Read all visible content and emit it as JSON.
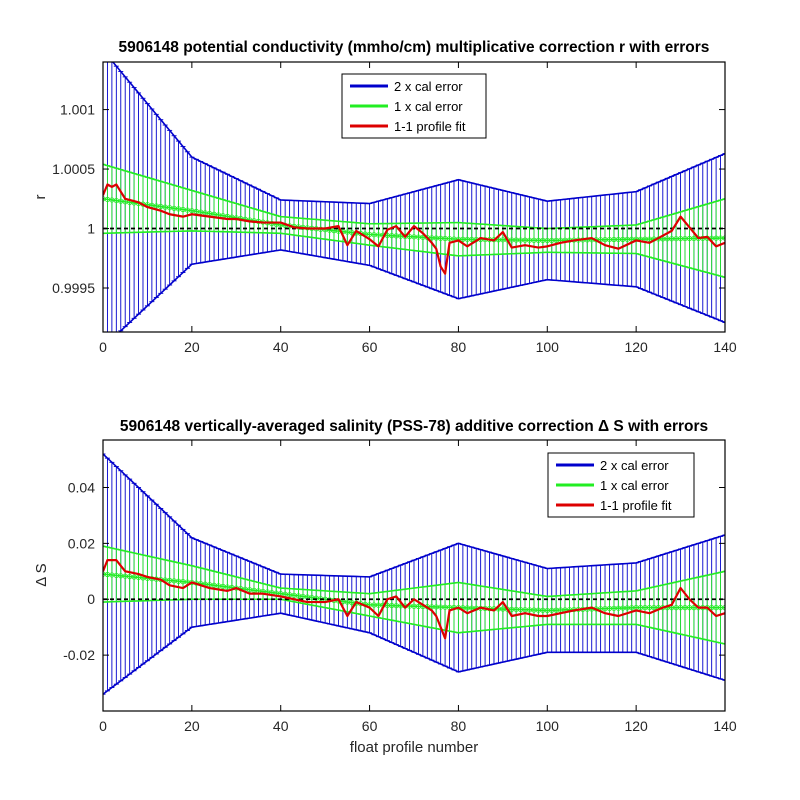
{
  "colors": {
    "two_x": "#0000CC",
    "one_x": "#22EE22",
    "fit": "#DD0000",
    "zero": "#000000"
  },
  "chart_data": [
    {
      "type": "line",
      "title": "5906148 potential conductivity (mmho/cm) multiplicative correction r with errors",
      "xlabel": "",
      "ylabel": "r",
      "xlim": [
        0,
        140
      ],
      "ylim": [
        0.99913,
        1.0014
      ],
      "xticks": [
        0,
        20,
        40,
        60,
        80,
        100,
        120,
        140
      ],
      "xtick_labels": [
        "0",
        "20",
        "40",
        "60",
        "80",
        "100",
        "120",
        "140"
      ],
      "yticks": [
        0.9995,
        1.0,
        1.0005,
        1.001
      ],
      "ytick_labels": [
        "0.9995",
        "1",
        "1.0005",
        "1.001"
      ],
      "reference_line": 1.0,
      "legend_position": "top-center",
      "legend": [
        "2 x cal error",
        "1 x cal error",
        "1-1 profile fit"
      ],
      "fit_mean": {
        "x": [
          0,
          20,
          40,
          60,
          80,
          100,
          120,
          140
        ],
        "y": [
          1.00025,
          1.00015,
          1.00003,
          0.99995,
          0.99991,
          0.9999,
          0.99991,
          0.99992
        ]
      },
      "err_1x": {
        "x": [
          0,
          20,
          40,
          60,
          80,
          100,
          120,
          140
        ],
        "y": [
          0.00029,
          0.00017,
          7e-05,
          9e-05,
          0.00014,
          0.0001,
          0.00012,
          0.00033
        ]
      },
      "err_2x": {
        "x": [
          0,
          20,
          40,
          60,
          80,
          100,
          120,
          140
        ],
        "y": [
          0.00125,
          0.00045,
          0.00021,
          0.00026,
          0.0005,
          0.00033,
          0.0004,
          0.00071
        ]
      },
      "profile_fit": {
        "x": [
          0,
          1,
          2,
          3,
          5,
          8,
          10,
          13,
          15,
          18,
          20,
          24,
          28,
          30,
          33,
          36,
          40,
          43,
          46,
          50,
          53,
          55,
          57,
          60,
          62,
          64,
          66,
          68,
          70,
          72,
          74,
          75,
          76,
          77,
          78,
          80,
          82,
          85,
          88,
          90,
          92,
          95,
          98,
          100,
          103,
          106,
          110,
          113,
          116,
          120,
          123,
          126,
          128,
          130,
          132,
          134,
          136,
          138,
          140
        ],
        "y": [
          1.00028,
          1.00037,
          1.00035,
          1.00037,
          1.00025,
          1.00022,
          1.00018,
          1.00015,
          1.00012,
          1.0001,
          1.00012,
          1.0001,
          1.00008,
          1.00008,
          1.00006,
          1.00005,
          1.00005,
          1.00001,
          1.0,
          1.0,
          1.00002,
          0.99986,
          0.99998,
          0.99991,
          0.99985,
          0.99999,
          1.00002,
          0.99993,
          1.00002,
          0.99996,
          0.99988,
          0.99983,
          0.99968,
          0.99962,
          0.99988,
          0.9999,
          0.99985,
          0.99992,
          0.9999,
          0.99997,
          0.99984,
          0.99986,
          0.99984,
          0.99985,
          0.99988,
          0.9999,
          0.99992,
          0.99986,
          0.99983,
          0.9999,
          0.99988,
          0.99994,
          0.99998,
          1.0001,
          1.00001,
          0.99992,
          0.99993,
          0.99985,
          0.99988
        ]
      }
    },
    {
      "type": "line",
      "title": "5906148 vertically-averaged salinity (PSS-78) additive correction Δ S with errors",
      "xlabel": "float profile number",
      "ylabel": "Δ S",
      "xlim": [
        0,
        140
      ],
      "ylim": [
        -0.04,
        0.057
      ],
      "xticks": [
        0,
        20,
        40,
        60,
        80,
        100,
        120,
        140
      ],
      "xtick_labels": [
        "0",
        "20",
        "40",
        "60",
        "80",
        "100",
        "120",
        "140"
      ],
      "yticks": [
        -0.02,
        0,
        0.02,
        0.04
      ],
      "ytick_labels": [
        "-0.02",
        "0",
        "0.02",
        "0.04"
      ],
      "reference_line": 0,
      "legend_position": "top-right",
      "legend": [
        "2 x cal error",
        "1 x cal error",
        "1-1 profile fit"
      ],
      "fit_mean": {
        "x": [
          0,
          20,
          40,
          60,
          80,
          100,
          120,
          140
        ],
        "y": [
          0.009,
          0.006,
          0.002,
          -0.002,
          -0.003,
          -0.004,
          -0.003,
          -0.003
        ]
      },
      "err_1x": {
        "x": [
          0,
          20,
          40,
          60,
          80,
          100,
          120,
          140
        ],
        "y": [
          0.01,
          0.006,
          0.002,
          0.004,
          0.009,
          0.005,
          0.006,
          0.013
        ]
      },
      "err_2x": {
        "x": [
          0,
          20,
          40,
          60,
          80,
          100,
          120,
          140
        ],
        "y": [
          0.043,
          0.016,
          0.007,
          0.01,
          0.023,
          0.015,
          0.016,
          0.026
        ]
      },
      "profile_fit": {
        "x": [
          0,
          1,
          2,
          3,
          5,
          8,
          10,
          13,
          15,
          18,
          20,
          24,
          28,
          30,
          33,
          36,
          40,
          43,
          46,
          50,
          53,
          55,
          57,
          60,
          62,
          64,
          66,
          68,
          70,
          72,
          74,
          75,
          76,
          77,
          78,
          80,
          82,
          85,
          88,
          90,
          92,
          95,
          98,
          100,
          103,
          106,
          110,
          113,
          116,
          120,
          123,
          126,
          128,
          130,
          132,
          134,
          136,
          138,
          140
        ],
        "y": [
          0.01,
          0.014,
          0.014,
          0.014,
          0.01,
          0.009,
          0.008,
          0.007,
          0.005,
          0.004,
          0.006,
          0.004,
          0.003,
          0.004,
          0.002,
          0.002,
          0.001,
          0.0,
          -0.001,
          -0.001,
          0.0,
          -0.006,
          -0.001,
          -0.003,
          -0.006,
          0.0,
          0.001,
          -0.003,
          0.0,
          -0.002,
          -0.004,
          -0.006,
          -0.01,
          -0.014,
          -0.004,
          -0.003,
          -0.005,
          -0.003,
          -0.004,
          -0.001,
          -0.006,
          -0.005,
          -0.006,
          -0.006,
          -0.005,
          -0.004,
          -0.003,
          -0.005,
          -0.006,
          -0.004,
          -0.005,
          -0.003,
          -0.002,
          0.004,
          0.0,
          -0.003,
          -0.003,
          -0.006,
          -0.005
        ]
      }
    }
  ]
}
